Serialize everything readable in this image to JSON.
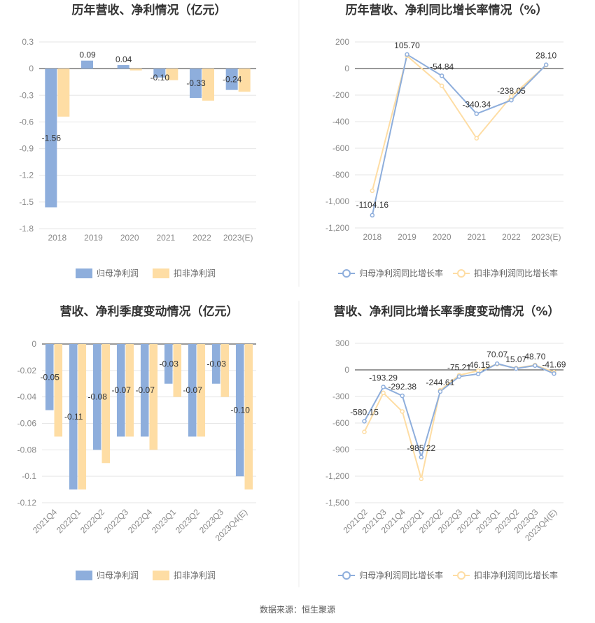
{
  "source_text": "数据来源：恒生聚源",
  "colors": {
    "series_a": "#8eaedc",
    "series_b": "#fedda4",
    "grid": "#e6e6e6",
    "axis": "#333333",
    "divider": "#eeeeee"
  },
  "chart_data": [
    {
      "type": "bar",
      "title": "历年营收、净利情况（亿元）",
      "categories": [
        "2018",
        "2019",
        "2020",
        "2021",
        "2022",
        "2023(E)"
      ],
      "ylim": [
        -1.8,
        0.3
      ],
      "yticks": [
        0.3,
        0,
        -0.3,
        -0.6,
        -0.9,
        -1.2,
        -1.5,
        -1.8
      ],
      "tick_labels": [
        "0.3",
        "0",
        "-0.3",
        "-0.6",
        "-0.9",
        "-1.2",
        "-1.5",
        "-1.8"
      ],
      "grid": true,
      "legend_position": "bottom-center",
      "rotate_x_labels": false,
      "series": [
        {
          "name": "归母净利润",
          "values": [
            -1.56,
            0.09,
            0.04,
            -0.1,
            -0.33,
            -0.24
          ],
          "labels": [
            "-1.56",
            "0.09",
            "0.04",
            "-0.10",
            "-0.33",
            "-0.24"
          ]
        },
        {
          "name": "扣非净利润",
          "values": [
            -0.54,
            0.0,
            -0.02,
            -0.13,
            -0.36,
            -0.26
          ]
        }
      ]
    },
    {
      "type": "line",
      "title": "历年营收、净利同比增长率情况（%）",
      "categories": [
        "2018",
        "2019",
        "2020",
        "2021",
        "2022",
        "2023(E)"
      ],
      "ylim": [
        -1200,
        200
      ],
      "yticks": [
        200,
        0,
        -200,
        -400,
        -600,
        -800,
        -1000,
        -1200
      ],
      "tick_labels": [
        "200",
        "0",
        "-200",
        "-400",
        "-600",
        "-800",
        "-1,000",
        "-1,200"
      ],
      "grid": true,
      "legend_position": "bottom-center",
      "rotate_x_labels": false,
      "series": [
        {
          "name": "归母净利润同比增长率",
          "values": [
            -1104.16,
            105.7,
            -54.84,
            -340.34,
            -238.05,
            28.1
          ],
          "labels": [
            "-1104.16",
            "105.70",
            "-54.84",
            "-340.34",
            "-238.05",
            "28.10"
          ]
        },
        {
          "name": "扣非净利润同比增长率",
          "values": [
            -920,
            95,
            -130,
            -525,
            -210,
            25
          ]
        }
      ]
    },
    {
      "type": "bar",
      "title": "营收、净利季度变动情况（亿元）",
      "categories": [
        "2021Q4",
        "2022Q1",
        "2022Q2",
        "2022Q3",
        "2022Q4",
        "2023Q1",
        "2023Q2",
        "2023Q3",
        "2023Q4(E)"
      ],
      "ylim": [
        -0.12,
        0
      ],
      "yticks": [
        0,
        -0.02,
        -0.04,
        -0.06,
        -0.08,
        -0.1,
        -0.12
      ],
      "tick_labels": [
        "0",
        "-0.02",
        "-0.04",
        "-0.06",
        "-0.08",
        "-0.1",
        "-0.12"
      ],
      "grid": true,
      "legend_position": "bottom-center",
      "rotate_x_labels": true,
      "series": [
        {
          "name": "归母净利润",
          "values": [
            -0.05,
            -0.11,
            -0.08,
            -0.07,
            -0.07,
            -0.03,
            -0.07,
            -0.03,
            -0.1
          ],
          "labels": [
            "-0.05",
            "-0.11",
            "-0.08",
            "-0.07",
            "-0.07",
            "-0.03",
            "-0.07",
            "-0.03",
            "-0.10"
          ]
        },
        {
          "name": "扣非净利润",
          "values": [
            -0.07,
            -0.11,
            -0.09,
            -0.07,
            -0.08,
            -0.04,
            -0.07,
            -0.04,
            -0.11
          ]
        }
      ]
    },
    {
      "type": "line",
      "title": "营收、净利同比增长率季度变动情况（%）",
      "categories": [
        "2021Q2",
        "2021Q3",
        "2021Q4",
        "2022Q1",
        "2022Q2",
        "2022Q3",
        "2022Q4",
        "2023Q1",
        "2023Q2",
        "2023Q3",
        "2023Q4(E)"
      ],
      "ylim": [
        -1500,
        300
      ],
      "yticks": [
        300,
        0,
        -300,
        -600,
        -900,
        -1200,
        -1500
      ],
      "tick_labels": [
        "300",
        "0",
        "-300",
        "-600",
        "-900",
        "-1,200",
        "-1,500"
      ],
      "grid": true,
      "legend_position": "bottom-center",
      "rotate_x_labels": true,
      "series": [
        {
          "name": "归母净利润同比增长率",
          "values": [
            -580.15,
            -193.29,
            -292.38,
            -985.22,
            -244.61,
            -75.21,
            -46.15,
            70.07,
            15.07,
            48.7,
            -41.69
          ],
          "labels": [
            "-580.15",
            "-193.29",
            "-292.38",
            "-985.22",
            "-244.61",
            "-75.21",
            "-46.15",
            "70.07",
            "15.07",
            "48.70",
            "-41.69"
          ]
        },
        {
          "name": "扣非净利润同比增长率",
          "values": [
            -700,
            -260,
            -470,
            -1230,
            -230,
            -60,
            -10,
            65,
            20,
            55,
            -25
          ]
        }
      ]
    }
  ]
}
